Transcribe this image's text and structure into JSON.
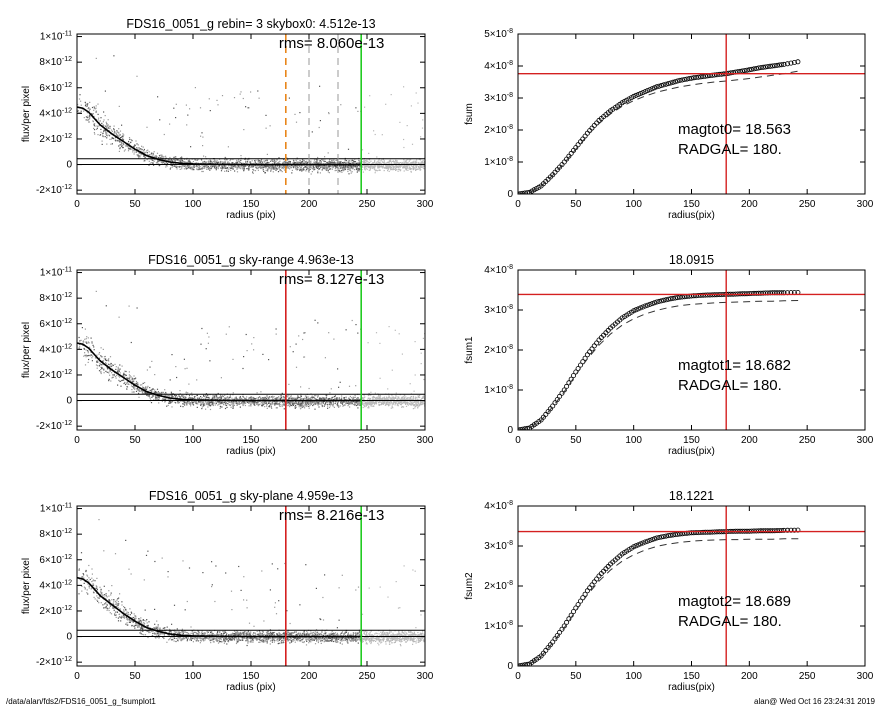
{
  "footer": {
    "path": "/data/alan/fds2/FDS16_0051_g_fsumplot1",
    "user_date": "alan@  Wed Oct 16 23:24:31 2019"
  },
  "chart_data": [
    {
      "type": "scatter",
      "panel": "profile-1",
      "title": "FDS16_0051_g rebin= 3    skybox0:  4.512e-13",
      "annotation": "rms= 8.060e-13",
      "xlabel": "radius (pix)",
      "ylabel": "flux/per pixel",
      "xlim": [
        0,
        300
      ],
      "ylim": [
        -2.3e-12,
        1.02e-11
      ],
      "xticks": [
        0,
        50,
        100,
        150,
        200,
        250,
        300
      ],
      "xtick_labels": [
        "0",
        "50",
        "100",
        "150",
        "200",
        "250",
        "300"
      ],
      "yticks": [
        1e-11,
        8e-12,
        6e-12,
        4e-12,
        2e-12,
        0,
        -2e-12
      ],
      "ytick_labels": [
        {
          "m": "1",
          "e": "-11"
        },
        {
          "m": "8",
          "e": "-12"
        },
        {
          "m": "6",
          "e": "-12"
        },
        {
          "m": "4",
          "e": "-12"
        },
        {
          "m": "2",
          "e": "-12"
        },
        {
          "m": "0",
          "e": ""
        },
        {
          "m": "-2",
          "e": "-12"
        }
      ],
      "mean_profile": {
        "r": [
          0,
          5,
          10,
          15,
          20,
          30,
          40,
          50,
          60,
          70,
          80,
          90,
          100,
          120,
          150,
          200,
          245
        ],
        "flux": [
          4.5e-12,
          4.4e-12,
          4.1e-12,
          3.6e-12,
          3.1e-12,
          2.4e-12,
          1.8e-12,
          1.2e-12,
          7e-13,
          4e-13,
          2e-13,
          1e-13,
          5e-14,
          2e-14,
          0,
          0,
          0
        ]
      },
      "hlines": [
        {
          "y": 4.512e-13,
          "color": "#000000"
        },
        {
          "y": 0,
          "color": "#000000"
        }
      ],
      "vlines": [
        {
          "x": 180,
          "color": "#e8861a",
          "style": "dashed"
        },
        {
          "x": 200,
          "color": "#999999",
          "style": "dashed"
        },
        {
          "x": 225,
          "color": "#999999",
          "style": "dashed"
        },
        {
          "x": 245,
          "color": "#22cc22",
          "style": "solid"
        }
      ]
    },
    {
      "type": "line",
      "panel": "growth-1",
      "title": "",
      "xlabel": "radius(pix)",
      "ylabel": "fsum",
      "xlim": [
        0,
        300
      ],
      "ylim": [
        0,
        5e-08
      ],
      "xticks": [
        0,
        50,
        100,
        150,
        200,
        250,
        300
      ],
      "xtick_labels": [
        "0",
        "50",
        "100",
        "150",
        "200",
        "250",
        "300"
      ],
      "yticks": [
        0,
        1e-08,
        2e-08,
        3e-08,
        4e-08,
        5e-08
      ],
      "ytick_labels": [
        {
          "m": "0",
          "e": ""
        },
        {
          "m": "1×10",
          "e": "-8"
        },
        {
          "m": "2×10",
          "e": "-8"
        },
        {
          "m": "3×10",
          "e": "-8"
        },
        {
          "m": "4×10",
          "e": "-8"
        },
        {
          "m": "5×10",
          "e": "-8"
        }
      ],
      "series": [
        {
          "x": [
            0,
            10,
            20,
            30,
            40,
            50,
            60,
            70,
            80,
            90,
            100,
            110,
            120,
            130,
            140,
            150,
            160,
            170,
            180,
            190,
            200,
            210,
            220,
            230,
            245
          ],
          "y": [
            0,
            5e-10,
            2.5e-09,
            6e-09,
            1e-08,
            1.45e-08,
            1.9e-08,
            2.3e-08,
            2.6e-08,
            2.85e-08,
            3.05e-08,
            3.2e-08,
            3.35e-08,
            3.45e-08,
            3.55e-08,
            3.62e-08,
            3.67e-08,
            3.72e-08,
            3.76e-08,
            3.82e-08,
            3.88e-08,
            3.95e-08,
            4e-08,
            4.05e-08,
            4.15e-08
          ],
          "style": "circles"
        },
        {
          "x": [
            0,
            10,
            20,
            30,
            40,
            50,
            60,
            70,
            80,
            90,
            100,
            110,
            120,
            130,
            140,
            150,
            160,
            170,
            180,
            190,
            200,
            210,
            220,
            230,
            245
          ],
          "y": [
            0,
            5e-10,
            2.4e-09,
            5.8e-09,
            9.7e-09,
            1.4e-08,
            1.83e-08,
            2.2e-08,
            2.5e-08,
            2.74e-08,
            2.92e-08,
            3.06e-08,
            3.18e-08,
            3.27e-08,
            3.35e-08,
            3.41e-08,
            3.46e-08,
            3.5e-08,
            3.53e-08,
            3.57e-08,
            3.61e-08,
            3.66e-08,
            3.71e-08,
            3.76e-08,
            3.86e-08
          ],
          "style": "dashed"
        }
      ],
      "hline": {
        "y": 3.76e-08,
        "color": "#d42020"
      },
      "vline": {
        "x": 180,
        "color": "#d42020"
      },
      "annotations": [
        "magtot0=  18.563",
        "RADGAL=    180."
      ]
    },
    {
      "type": "scatter",
      "panel": "profile-2",
      "title": "FDS16_0051_g sky-range  4.963e-13",
      "annotation": "rms= 8.127e-13",
      "xlabel": "radius (pix)",
      "ylabel": "flux/per pixel",
      "xlim": [
        0,
        300
      ],
      "ylim": [
        -2.3e-12,
        1.02e-11
      ],
      "xticks": [
        0,
        50,
        100,
        150,
        200,
        250,
        300
      ],
      "xtick_labels": [
        "0",
        "50",
        "100",
        "150",
        "200",
        "250",
        "300"
      ],
      "yticks": [
        1e-11,
        8e-12,
        6e-12,
        4e-12,
        2e-12,
        0,
        -2e-12
      ],
      "ytick_labels": [
        {
          "m": "1",
          "e": "-11"
        },
        {
          "m": "8",
          "e": "-12"
        },
        {
          "m": "6",
          "e": "-12"
        },
        {
          "m": "4",
          "e": "-12"
        },
        {
          "m": "2",
          "e": "-12"
        },
        {
          "m": "0",
          "e": ""
        },
        {
          "m": "-2",
          "e": "-12"
        }
      ],
      "mean_profile": {
        "r": [
          0,
          5,
          10,
          15,
          20,
          30,
          40,
          50,
          60,
          70,
          80,
          90,
          100,
          120,
          150,
          200,
          245
        ],
        "flux": [
          4.5e-12,
          4.4e-12,
          4.1e-12,
          3.6e-12,
          3.1e-12,
          2.4e-12,
          1.8e-12,
          1.2e-12,
          7e-13,
          4e-13,
          2e-13,
          1e-13,
          5e-14,
          2e-14,
          0,
          0,
          0
        ]
      },
      "hlines": [
        {
          "y": 4.963e-13,
          "color": "#000000"
        },
        {
          "y": 0,
          "color": "#000000"
        }
      ],
      "vlines": [
        {
          "x": 180,
          "color": "#d42020",
          "style": "solid"
        },
        {
          "x": 245,
          "color": "#22cc22",
          "style": "solid"
        }
      ]
    },
    {
      "type": "line",
      "panel": "growth-2",
      "title": "18.0915",
      "xlabel": "radius(pix)",
      "ylabel": "fsum1",
      "xlim": [
        0,
        300
      ],
      "ylim": [
        0,
        4e-08
      ],
      "xticks": [
        0,
        50,
        100,
        150,
        200,
        250,
        300
      ],
      "xtick_labels": [
        "0",
        "50",
        "100",
        "150",
        "200",
        "250",
        "300"
      ],
      "yticks": [
        0,
        1e-08,
        2e-08,
        3e-08,
        4e-08
      ],
      "ytick_labels": [
        {
          "m": "0",
          "e": ""
        },
        {
          "m": "1×10",
          "e": "-8"
        },
        {
          "m": "2×10",
          "e": "-8"
        },
        {
          "m": "3×10",
          "e": "-8"
        },
        {
          "m": "4×10",
          "e": "-8"
        }
      ],
      "series": [
        {
          "x": [
            0,
            10,
            20,
            30,
            40,
            50,
            60,
            70,
            80,
            90,
            100,
            110,
            120,
            130,
            140,
            150,
            160,
            170,
            180,
            190,
            200,
            210,
            220,
            230,
            245
          ],
          "y": [
            0,
            5e-10,
            2.5e-09,
            6e-09,
            1e-08,
            1.45e-08,
            1.88e-08,
            2.25e-08,
            2.55e-08,
            2.8e-08,
            2.98e-08,
            3.1e-08,
            3.2e-08,
            3.27e-08,
            3.32e-08,
            3.35e-08,
            3.37e-08,
            3.38e-08,
            3.39e-08,
            3.4e-08,
            3.41e-08,
            3.42e-08,
            3.43e-08,
            3.43e-08,
            3.44e-08
          ],
          "style": "circles"
        },
        {
          "x": [
            0,
            10,
            20,
            30,
            40,
            50,
            60,
            70,
            80,
            90,
            100,
            110,
            120,
            130,
            140,
            150,
            160,
            170,
            180,
            190,
            200,
            210,
            220,
            230,
            245
          ],
          "y": [
            0,
            5e-10,
            2.4e-09,
            5.8e-09,
            9.6e-09,
            1.38e-08,
            1.78e-08,
            2.12e-08,
            2.4e-08,
            2.62e-08,
            2.78e-08,
            2.9e-08,
            2.99e-08,
            3.06e-08,
            3.11e-08,
            3.14e-08,
            3.16e-08,
            3.18e-08,
            3.19e-08,
            3.2e-08,
            3.21e-08,
            3.22e-08,
            3.22e-08,
            3.23e-08,
            3.24e-08
          ],
          "style": "dashed"
        }
      ],
      "hline": {
        "y": 3.39e-08,
        "color": "#d42020"
      },
      "vline": {
        "x": 180,
        "color": "#d42020"
      },
      "annotations": [
        "magtot1=  18.682",
        "RADGAL=    180."
      ]
    },
    {
      "type": "scatter",
      "panel": "profile-3",
      "title": "FDS16_0051_g sky-plane  4.959e-13",
      "annotation": "rms= 8.216e-13",
      "xlabel": "radius (pix)",
      "ylabel": "flux/per pixel",
      "xlim": [
        0,
        300
      ],
      "ylim": [
        -2.3e-12,
        1.02e-11
      ],
      "xticks": [
        0,
        50,
        100,
        150,
        200,
        250,
        300
      ],
      "xtick_labels": [
        "0",
        "50",
        "100",
        "150",
        "200",
        "250",
        "300"
      ],
      "yticks": [
        1e-11,
        8e-12,
        6e-12,
        4e-12,
        2e-12,
        0,
        -2e-12
      ],
      "ytick_labels": [
        {
          "m": "1",
          "e": "-11"
        },
        {
          "m": "8",
          "e": "-12"
        },
        {
          "m": "6",
          "e": "-12"
        },
        {
          "m": "4",
          "e": "-12"
        },
        {
          "m": "2",
          "e": "-12"
        },
        {
          "m": "0",
          "e": ""
        },
        {
          "m": "-2",
          "e": "-12"
        }
      ],
      "mean_profile": {
        "r": [
          0,
          5,
          10,
          15,
          20,
          30,
          40,
          50,
          60,
          70,
          80,
          90,
          100,
          120,
          150,
          200,
          245
        ],
        "flux": [
          4.6e-12,
          4.5e-12,
          4.2e-12,
          3.7e-12,
          3.2e-12,
          2.5e-12,
          1.8e-12,
          1.2e-12,
          7e-13,
          4e-13,
          2e-13,
          1e-13,
          5e-14,
          2e-14,
          0,
          0,
          0
        ]
      },
      "hlines": [
        {
          "y": 4.959e-13,
          "color": "#000000"
        },
        {
          "y": 0,
          "color": "#000000"
        }
      ],
      "vlines": [
        {
          "x": 180,
          "color": "#d42020",
          "style": "solid"
        },
        {
          "x": 245,
          "color": "#22cc22",
          "style": "solid"
        }
      ]
    },
    {
      "type": "line",
      "panel": "growth-3",
      "title": "18.1221",
      "xlabel": "radius(pix)",
      "ylabel": "fsum2",
      "xlim": [
        0,
        300
      ],
      "ylim": [
        0,
        4e-08
      ],
      "xticks": [
        0,
        50,
        100,
        150,
        200,
        250,
        300
      ],
      "xtick_labels": [
        "0",
        "50",
        "100",
        "150",
        "200",
        "250",
        "300"
      ],
      "yticks": [
        0,
        1e-08,
        2e-08,
        3e-08,
        4e-08
      ],
      "ytick_labels": [
        {
          "m": "0",
          "e": ""
        },
        {
          "m": "1×10",
          "e": "-8"
        },
        {
          "m": "2×10",
          "e": "-8"
        },
        {
          "m": "3×10",
          "e": "-8"
        },
        {
          "m": "4×10",
          "e": "-8"
        }
      ],
      "series": [
        {
          "x": [
            0,
            10,
            20,
            30,
            40,
            50,
            60,
            70,
            80,
            90,
            100,
            110,
            120,
            130,
            140,
            150,
            160,
            170,
            180,
            190,
            200,
            210,
            220,
            230,
            245
          ],
          "y": [
            0,
            5e-10,
            2.5e-09,
            6e-09,
            1e-08,
            1.45e-08,
            1.88e-08,
            2.25e-08,
            2.55e-08,
            2.8e-08,
            2.98e-08,
            3.1e-08,
            3.2e-08,
            3.26e-08,
            3.3e-08,
            3.33e-08,
            3.34e-08,
            3.35e-08,
            3.36e-08,
            3.37e-08,
            3.37e-08,
            3.38e-08,
            3.38e-08,
            3.39e-08,
            3.4e-08
          ],
          "style": "circles"
        },
        {
          "x": [
            0,
            10,
            20,
            30,
            40,
            50,
            60,
            70,
            80,
            90,
            100,
            110,
            120,
            130,
            140,
            150,
            160,
            170,
            180,
            190,
            200,
            210,
            220,
            230,
            245
          ],
          "y": [
            0,
            5e-10,
            2.4e-09,
            5.8e-09,
            9.6e-09,
            1.38e-08,
            1.78e-08,
            2.12e-08,
            2.4e-08,
            2.62e-08,
            2.78e-08,
            2.9e-08,
            2.99e-08,
            3.05e-08,
            3.09e-08,
            3.12e-08,
            3.14e-08,
            3.15e-08,
            3.16e-08,
            3.16e-08,
            3.17e-08,
            3.17e-08,
            3.17e-08,
            3.18e-08,
            3.18e-08
          ],
          "style": "dashed"
        }
      ],
      "hline": {
        "y": 3.36e-08,
        "color": "#d42020"
      },
      "vline": {
        "x": 180,
        "color": "#d42020"
      },
      "annotations": [
        "magtot2=  18.689",
        "RADGAL=    180."
      ]
    }
  ]
}
